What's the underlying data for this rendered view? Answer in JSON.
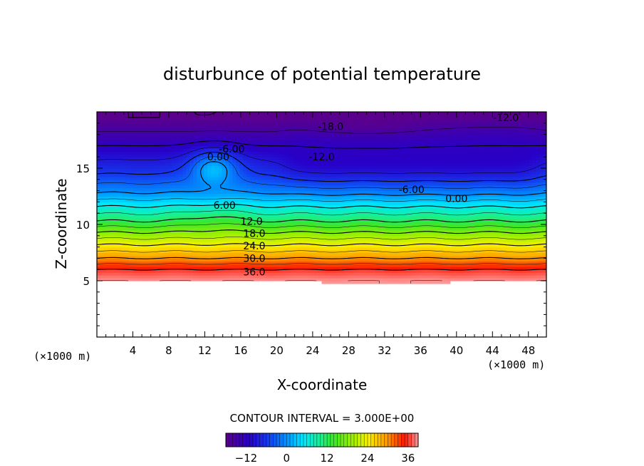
{
  "chart_data": {
    "type": "contour",
    "title": "disturbunce of potential temperature",
    "xlabel": "X-coordinate",
    "ylabel": "Z-coordinate",
    "x_unit": "(×1000 m)",
    "z_unit": "(×1000 m)",
    "xlim": [
      0,
      50
    ],
    "ylim": [
      0,
      20
    ],
    "x_ticks": [
      "4",
      "8",
      "12",
      "16",
      "20",
      "24",
      "28",
      "32",
      "36",
      "40",
      "44",
      "48"
    ],
    "y_ticks": [
      "5",
      "10",
      "15"
    ],
    "contour_interval_text": "CONTOUR INTERVAL = 3.000E+00",
    "contour_interval": 3.0,
    "colorbar": {
      "range": [
        -18,
        39
      ],
      "tick_labels": [
        "−12",
        "0",
        "12",
        "24",
        "36"
      ]
    },
    "contour_labels": [
      {
        "text": "-18.0",
        "x": 26.0,
        "z": 18.7
      },
      {
        "text": "-12.0",
        "x": 45.5,
        "z": 19.5
      },
      {
        "text": "-12.0",
        "x": 25.0,
        "z": 16.0
      },
      {
        "text": "-6.00",
        "x": 15.0,
        "z": 16.7
      },
      {
        "text": "0.00",
        "x": 13.5,
        "z": 16.0
      },
      {
        "text": "-6.00",
        "x": 35.0,
        "z": 13.1
      },
      {
        "text": "0.00",
        "x": 40.0,
        "z": 12.3
      },
      {
        "text": "6.00",
        "x": 14.2,
        "z": 11.7
      },
      {
        "text": "12.0",
        "x": 17.2,
        "z": 10.3
      },
      {
        "text": "18.0",
        "x": 17.5,
        "z": 9.2
      },
      {
        "text": "24.0",
        "x": 17.5,
        "z": 8.1
      },
      {
        "text": "30.0",
        "x": 17.5,
        "z": 7.0
      },
      {
        "text": "36.0",
        "x": 17.5,
        "z": 5.8
      }
    ],
    "field": {
      "ground_level_z": 5.0,
      "layers": [
        {
          "value": 39,
          "z": 5.0
        },
        {
          "value": 36,
          "z": 6.0
        },
        {
          "value": 30,
          "z": 7.0
        },
        {
          "value": 24,
          "z": 8.2
        },
        {
          "value": 18,
          "z": 9.3
        },
        {
          "value": 12,
          "z": 10.3
        },
        {
          "value": 6,
          "z": 11.6
        },
        {
          "value": 0,
          "z": 12.8
        },
        {
          "value": -6,
          "z": 14.5
        },
        {
          "value": -12,
          "z": 17.0
        },
        {
          "value": -18,
          "z": 19.5
        }
      ],
      "features": [
        {
          "kind": "warm-plume",
          "x_center": 13.0,
          "z_top": 16.2,
          "value": 3
        },
        {
          "kind": "cold-pool",
          "x_range": [
            21,
            50
          ],
          "z_range": [
            13.5,
            19.0
          ],
          "value": -12
        },
        {
          "kind": "cold-core",
          "x_range": [
            21,
            40
          ],
          "z_range": [
            18.3,
            20
          ],
          "value": -18
        }
      ]
    }
  }
}
